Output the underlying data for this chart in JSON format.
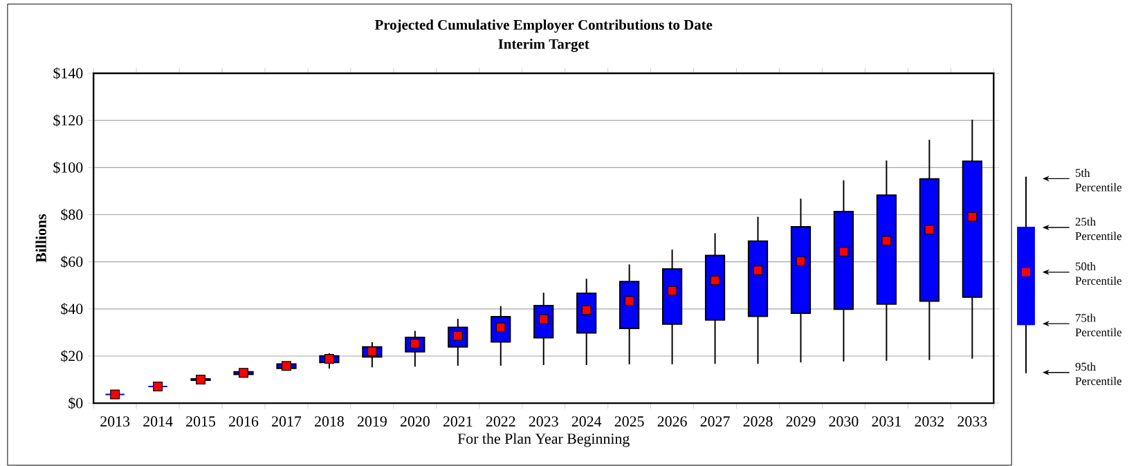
{
  "chart_data": {
    "type": "box",
    "title": "Projected Cumulative Employer Contributions to Date",
    "subtitle": "Interim Target",
    "xlabel": "For the Plan Year Beginning",
    "ylabel": "Billions",
    "categories": [
      "2013",
      "2014",
      "2015",
      "2016",
      "2017",
      "2018",
      "2019",
      "2020",
      "2021",
      "2022",
      "2023",
      "2024",
      "2025",
      "2026",
      "2027",
      "2028",
      "2029",
      "2030",
      "2031",
      "2032",
      "2033"
    ],
    "series": [
      {
        "color": "#0000ff",
        "boxes": [
          {
            "low": 3.7,
            "q1": 3.7,
            "median": 3.7,
            "q3": 3.7,
            "high": 3.7
          },
          {
            "low": 7.1,
            "q1": 7.1,
            "median": 7.1,
            "q3": 7.1,
            "high": 7.1
          },
          {
            "low": 9.7,
            "q1": 9.7,
            "median": 10.0,
            "q3": 10.3,
            "high": 10.3
          },
          {
            "low": 12.2,
            "q1": 12.2,
            "median": 12.9,
            "q3": 13.3,
            "high": 13.3
          },
          {
            "low": 14.5,
            "q1": 14.8,
            "median": 15.8,
            "q3": 16.6,
            "high": 16.9
          },
          {
            "low": 14.7,
            "q1": 17.3,
            "median": 18.8,
            "q3": 20.1,
            "high": 21.2
          },
          {
            "low": 15.2,
            "q1": 19.6,
            "median": 22.0,
            "q3": 23.9,
            "high": 25.9
          },
          {
            "low": 15.5,
            "q1": 21.8,
            "median": 25.3,
            "q3": 27.9,
            "high": 30.7
          },
          {
            "low": 15.9,
            "q1": 23.9,
            "median": 28.6,
            "q3": 32.2,
            "high": 35.8
          },
          {
            "low": 15.9,
            "q1": 26.0,
            "median": 32.2,
            "q3": 36.7,
            "high": 41.2
          },
          {
            "low": 16.2,
            "q1": 27.8,
            "median": 35.7,
            "q3": 41.4,
            "high": 46.9
          },
          {
            "low": 16.2,
            "q1": 29.8,
            "median": 39.5,
            "q3": 46.6,
            "high": 52.8
          },
          {
            "low": 16.5,
            "q1": 31.7,
            "median": 43.4,
            "q3": 51.6,
            "high": 58.9
          },
          {
            "low": 16.5,
            "q1": 33.6,
            "median": 47.7,
            "q3": 57.0,
            "high": 65.2
          },
          {
            "low": 16.7,
            "q1": 35.3,
            "median": 52.1,
            "q3": 62.7,
            "high": 72.1
          },
          {
            "low": 16.7,
            "q1": 36.9,
            "median": 56.4,
            "q3": 68.8,
            "high": 79.1
          },
          {
            "low": 17.3,
            "q1": 38.2,
            "median": 60.3,
            "q3": 74.9,
            "high": 86.8
          },
          {
            "low": 17.7,
            "q1": 39.9,
            "median": 64.3,
            "q3": 81.3,
            "high": 94.6
          },
          {
            "low": 18.0,
            "q1": 42.1,
            "median": 68.9,
            "q3": 88.3,
            "high": 103.0
          },
          {
            "low": 18.3,
            "q1": 43.3,
            "median": 73.6,
            "q3": 95.2,
            "high": 111.8
          },
          {
            "low": 18.9,
            "q1": 45.0,
            "median": 79.1,
            "q3": 102.7,
            "high": 120.3
          }
        ]
      },
      {
        "type": "scatter",
        "color": "#ff0000",
        "marker": "square",
        "values": [
          3.7,
          7.1,
          10.0,
          12.9,
          15.8,
          18.8,
          22.0,
          25.3,
          28.6,
          32.2,
          35.7,
          39.5,
          43.4,
          47.7,
          52.1,
          56.4,
          60.3,
          64.3,
          68.9,
          73.6,
          79.1
        ]
      }
    ],
    "ylim": [
      0,
      140
    ],
    "yticks": [
      {
        "value": 0,
        "label": "$0"
      },
      {
        "value": 20,
        "label": "$20"
      },
      {
        "value": 40,
        "label": "$40"
      },
      {
        "value": 60,
        "label": "$60"
      },
      {
        "value": 80,
        "label": "$80"
      },
      {
        "value": 100,
        "label": "$100"
      },
      {
        "value": 120,
        "label": "$120"
      },
      {
        "value": 140,
        "label": "$140"
      }
    ],
    "grid": "y",
    "annotations": [
      "5th Percentile",
      "25th Percentile",
      "50th Percentile",
      "75th Percentile",
      "95th Percentile"
    ]
  }
}
